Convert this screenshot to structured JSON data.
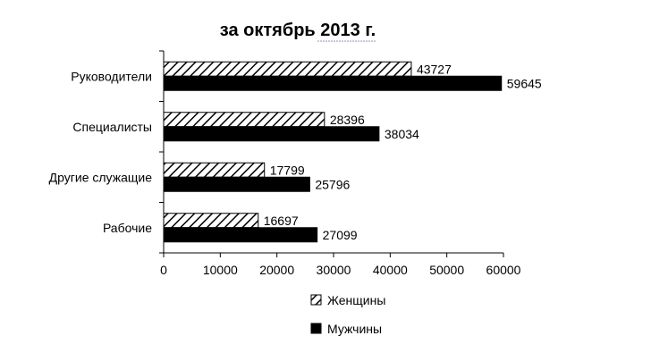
{
  "chart_data": {
    "type": "bar",
    "orientation": "horizontal",
    "title": "за октябрь 2013 г.",
    "categories": [
      "Руководители",
      "Специалисты",
      "Другие служащие",
      "Рабочие"
    ],
    "series": [
      {
        "name": "Женщины",
        "values": [
          43727,
          28396,
          17799,
          16697
        ],
        "fill": "hatched",
        "color": "#000000"
      },
      {
        "name": "Мужчины",
        "values": [
          59645,
          38034,
          25796,
          27099
        ],
        "fill": "solid",
        "color": "#000000"
      }
    ],
    "xlim": [
      0,
      60000
    ],
    "x_ticks": [
      "0",
      "10000",
      "20000",
      "30000",
      "40000",
      "50000",
      "60000"
    ],
    "grid": false,
    "legend_position": "bottom",
    "data_labels": true
  }
}
